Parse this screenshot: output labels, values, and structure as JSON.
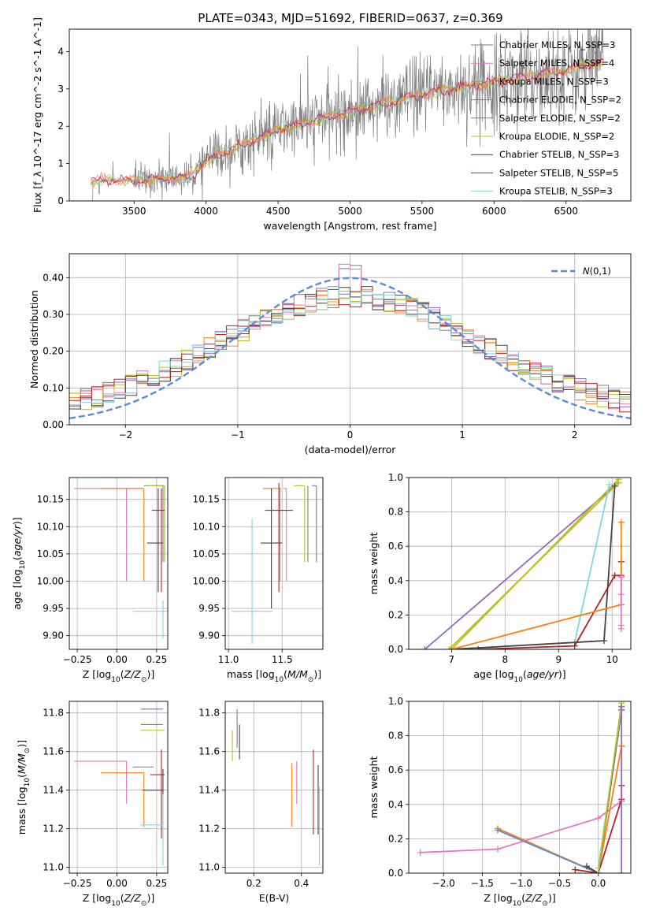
{
  "title": "PLATE=0343, MJD=51692, FIBERID=0637, z=0.369",
  "colors": {
    "chabrier_miles": "#7f7f7f",
    "salpeter_miles": "#e377c2",
    "kroupa_miles": "#ff7f0e",
    "chabrier_elodie": "#7f7f7f",
    "salpeter_elodie": "#9467bd",
    "kroupa_elodie": "#bcbd22",
    "chabrier_stelib": "#444444",
    "salpeter_stelib": "#b22222",
    "kroupa_stelib": "#7fd6dd",
    "gaussian": "#5b8bd6"
  },
  "chart_data": [
    {
      "id": "spectrum",
      "type": "line",
      "xlabel": "wavelength [Angstrom, rest frame]",
      "ylabel": "Flux [f_λ 10^-17 erg cm^-2 s^-1 A^-1]",
      "xlim": [
        3050,
        6950
      ],
      "ylim": [
        0,
        4.6
      ],
      "xticks": [
        3500,
        4000,
        4500,
        5000,
        5500,
        6000,
        6500
      ],
      "yticks": [
        0,
        1,
        2,
        3,
        4
      ],
      "legend_position": "top-right",
      "legend": [
        {
          "label": "Chabrier MILES, N_SSP=3",
          "color": "#7f7f7f"
        },
        {
          "label": "Salpeter MILES, N_SSP=4",
          "color": "#e377c2"
        },
        {
          "label": "Kroupa MILES, N_SSP=3",
          "color": "#ff7f0e"
        },
        {
          "label": "Chabrier ELODIE, N_SSP=2",
          "color": "#7f7f7f"
        },
        {
          "label": "Salpeter ELODIE, N_SSP=2",
          "color": "#9467bd"
        },
        {
          "label": "Kroupa ELODIE, N_SSP=2",
          "color": "#bcbd22"
        },
        {
          "label": "Chabrier STELIB, N_SSP=3",
          "color": "#444444"
        },
        {
          "label": "Salpeter STELIB, N_SSP=5",
          "color": "#b22222"
        },
        {
          "label": "Kroupa STELIB, N_SSP=3",
          "color": "#7fd6dd"
        }
      ],
      "model_trend": [
        {
          "x": 3200,
          "y": 0.55
        },
        {
          "x": 3500,
          "y": 0.55
        },
        {
          "x": 3900,
          "y": 0.65
        },
        {
          "x": 4000,
          "y": 1.1
        },
        {
          "x": 4500,
          "y": 1.9
        },
        {
          "x": 5000,
          "y": 2.4
        },
        {
          "x": 5500,
          "y": 2.85
        },
        {
          "x": 6000,
          "y": 3.2
        },
        {
          "x": 6500,
          "y": 3.5
        },
        {
          "x": 6750,
          "y": 3.75
        }
      ]
    },
    {
      "id": "residuals",
      "type": "line",
      "xlabel": "(data-model)/error",
      "ylabel": "Normed distribution",
      "xlim": [
        -2.5,
        2.5
      ],
      "ylim": [
        0,
        0.465
      ],
      "xticks": [
        -2,
        -1,
        0,
        1,
        2
      ],
      "yticks": [
        0.0,
        0.1,
        0.2,
        0.3,
        0.4
      ],
      "legend_position": "top-right",
      "legend": [
        {
          "label": "N(0,1)",
          "color": "#5b8bd6",
          "dashed": true
        }
      ],
      "gaussian": {
        "mu": 0,
        "sigma": 1
      },
      "hist_bin_width": 0.1,
      "hist_envelope_max": 0.44
    },
    {
      "id": "age_vs_Z",
      "type": "scatter",
      "xlabel": "Z [log10(Z/Z⊙)]",
      "ylabel": "age [log10(age/yr)]",
      "xlim": [
        -0.3,
        0.32
      ],
      "ylim": [
        9.875,
        10.19
      ],
      "xticks": [
        -0.25,
        0.0,
        0.25
      ],
      "yticks": [
        9.9,
        9.95,
        10.0,
        10.05,
        10.1,
        10.15
      ],
      "points": [
        {
          "color": "#e377c2",
          "x": 0.06,
          "y": 10.17,
          "xerr": [
            0.33,
            0.1
          ],
          "yerr": [
            0.17,
            0.0
          ]
        },
        {
          "color": "#ff7f0e",
          "x": 0.17,
          "y": 10.17,
          "xerr": [
            0.27,
            0.0
          ],
          "yerr": [
            0.17,
            0.0
          ]
        },
        {
          "color": "#7f7f7f",
          "x": 0.29,
          "y": 10.175,
          "xerr": [
            0.12,
            0.01
          ],
          "yerr": [
            0.14,
            0.0
          ]
        },
        {
          "color": "#9467bd",
          "x": 0.3,
          "y": 10.175,
          "xerr": [
            0.08,
            0.0
          ],
          "yerr": [
            0.14,
            0.0
          ]
        },
        {
          "color": "#bcbd22",
          "x": 0.3,
          "y": 10.175,
          "xerr": [
            0.1,
            0.0
          ],
          "yerr": [
            0.14,
            0.0
          ]
        },
        {
          "color": "#444444",
          "x": 0.26,
          "y": 10.07,
          "xerr": [
            0.07,
            0.03
          ],
          "yerr": [
            0.09,
            0.1
          ]
        },
        {
          "color": "#b22222",
          "x": 0.28,
          "y": 10.13,
          "xerr": [
            0.06,
            0.02
          ],
          "yerr": [
            0.15,
            0.04
          ]
        },
        {
          "color": "#7fd6dd",
          "x": 0.29,
          "y": 9.945,
          "xerr": [
            0.19,
            0.03
          ],
          "yerr": [
            0.05,
            0.02
          ]
        }
      ]
    },
    {
      "id": "age_vs_mass",
      "type": "scatter",
      "xlabel": "mass [log10(M/M⊙)]",
      "ylabel": "",
      "xlim": [
        10.97,
        11.88
      ],
      "ylim": [
        9.875,
        10.19
      ],
      "xticks": [
        11.0,
        11.5
      ],
      "yticks": [
        9.9,
        9.95,
        10.0,
        10.05,
        10.1,
        10.15
      ],
      "points": [
        {
          "color": "#e377c2",
          "x": 11.54,
          "y": 10.17,
          "xerr": [
            0.03,
            0.0
          ],
          "yerr": [
            0.17,
            0.0
          ]
        },
        {
          "color": "#ff7f0e",
          "x": 11.48,
          "y": 10.17,
          "xerr": [
            0.16,
            0.01
          ],
          "yerr": [
            0.17,
            0.0
          ]
        },
        {
          "color": "#7f7f7f",
          "x": 11.74,
          "y": 10.175,
          "xerr": [
            0.0,
            0.0
          ],
          "yerr": [
            0.14,
            0.0
          ]
        },
        {
          "color": "#9467bd",
          "x": 11.82,
          "y": 10.175,
          "xerr": [
            0.04,
            0.0
          ],
          "yerr": [
            0.14,
            0.0
          ]
        },
        {
          "color": "#bcbd22",
          "x": 11.71,
          "y": 10.175,
          "xerr": [
            0.1,
            0.0
          ],
          "yerr": [
            0.14,
            0.0
          ]
        },
        {
          "color": "#444444",
          "x": 11.4,
          "y": 10.07,
          "xerr": [
            0.1,
            0.1
          ],
          "yerr": [
            0.12,
            0.1
          ]
        },
        {
          "color": "#b22222",
          "x": 11.47,
          "y": 10.13,
          "xerr": [
            0.13,
            0.13
          ],
          "yerr": [
            0.15,
            0.05
          ]
        },
        {
          "color": "#7fd6dd",
          "x": 11.22,
          "y": 9.945,
          "xerr": [
            0.19,
            0.19
          ],
          "yerr": [
            0.06,
            0.17
          ]
        }
      ]
    },
    {
      "id": "weight_vs_age",
      "type": "line",
      "xlabel": "age [log10(age/yr)]",
      "ylabel": "mass weight",
      "xlim": [
        6.2,
        10.35
      ],
      "ylim": [
        0,
        1.0
      ],
      "xticks": [
        7,
        8,
        9,
        10
      ],
      "yticks": [
        0.0,
        0.2,
        0.4,
        0.6,
        0.8,
        1.0
      ],
      "series": [
        {
          "color": "#9467bd",
          "x": [
            6.5,
            10.12
          ],
          "y": [
            0.0,
            0.97
          ]
        },
        {
          "color": "#bcbd22",
          "x": [
            7.0,
            10.12
          ],
          "y": [
            0.0,
            0.99
          ]
        },
        {
          "color": "#bcbd22",
          "x": [
            6.95,
            10.12
          ],
          "y": [
            0.0,
            0.97
          ]
        },
        {
          "color": "#7fd6dd",
          "x": [
            7.0,
            9.3,
            9.95
          ],
          "y": [
            0.0,
            0.04,
            0.96
          ]
        },
        {
          "color": "#444444",
          "x": [
            7.0,
            9.85,
            10.05
          ],
          "y": [
            0.0,
            0.05,
            0.95
          ]
        },
        {
          "color": "#b22222",
          "x": [
            7.5,
            9.3,
            10.05,
            10.17,
            10.17
          ],
          "y": [
            0.0,
            0.02,
            0.43,
            0.43,
            0.51
          ]
        },
        {
          "color": "#ff7f0e",
          "x": [
            7.0,
            10.17,
            10.17
          ],
          "y": [
            0.0,
            0.26,
            0.74
          ]
        },
        {
          "color": "#e377c2",
          "x": [
            10.17,
            10.17,
            10.17,
            10.17
          ],
          "y": [
            0.12,
            0.14,
            0.32,
            0.42
          ]
        }
      ]
    },
    {
      "id": "mass_vs_Z",
      "type": "scatter",
      "xlabel": "Z [log10(Z/Z⊙)]",
      "ylabel": "mass [log10(M/M⊙)]",
      "xlim": [
        -0.3,
        0.32
      ],
      "ylim": [
        10.97,
        11.86
      ],
      "xticks": [
        -0.25,
        0.0,
        0.25
      ],
      "yticks": [
        11.0,
        11.2,
        11.4,
        11.6,
        11.8
      ],
      "points": [
        {
          "color": "#e377c2",
          "x": 0.06,
          "y": 11.55,
          "xerr": [
            0.33,
            0.0
          ],
          "yerr": [
            0.22,
            0.0
          ]
        },
        {
          "color": "#ff7f0e",
          "x": 0.17,
          "y": 11.49,
          "xerr": [
            0.27,
            0.0
          ],
          "yerr": [
            0.28,
            0.0
          ]
        },
        {
          "color": "#5b8bd6",
          "x": 0.23,
          "y": 11.52,
          "xerr": [
            0.13,
            0.0
          ],
          "yerr": [
            0.0,
            0.0
          ]
        },
        {
          "color": "#7f7f7f",
          "x": 0.29,
          "y": 11.74,
          "xerr": [
            0.14,
            0.0
          ],
          "yerr": [
            0.0,
            0.0
          ]
        },
        {
          "color": "#9467bd",
          "x": 0.29,
          "y": 11.82,
          "xerr": [
            0.14,
            0.0
          ],
          "yerr": [
            0.0,
            0.0
          ]
        },
        {
          "color": "#bcbd22",
          "x": 0.29,
          "y": 11.71,
          "xerr": [
            0.14,
            0.01
          ],
          "yerr": [
            0.0,
            0.0
          ]
        },
        {
          "color": "#444444",
          "x": 0.29,
          "y": 11.4,
          "xerr": [
            0.13,
            0.0
          ],
          "yerr": [
            0.24,
            0.11
          ]
        },
        {
          "color": "#b22222",
          "x": 0.28,
          "y": 11.48,
          "xerr": [
            0.07,
            0.02
          ],
          "yerr": [
            0.33,
            0.13
          ]
        },
        {
          "color": "#7fd6dd",
          "x": 0.29,
          "y": 11.22,
          "xerr": [
            0.14,
            0.0
          ],
          "yerr": [
            0.21,
            0.16
          ]
        }
      ]
    },
    {
      "id": "mass_vs_EBV",
      "type": "scatter",
      "xlabel": "E(B-V)",
      "ylabel": "",
      "xlim": [
        0.08,
        0.49
      ],
      "ylim": [
        10.97,
        11.86
      ],
      "xticks": [
        0.2,
        0.4
      ],
      "yticks": [
        11.0,
        11.2,
        11.4,
        11.6,
        11.8
      ],
      "points": [
        {
          "color": "#bcbd22",
          "x": 0.11,
          "y": 11.65,
          "xerr": [
            0,
            0
          ],
          "yerr": [
            0.1,
            0.06
          ]
        },
        {
          "color": "#9467bd",
          "x": 0.13,
          "y": 11.72,
          "xerr": [
            0,
            0
          ],
          "yerr": [
            0.1,
            0.1
          ]
        },
        {
          "color": "#444444",
          "x": 0.14,
          "y": 11.65,
          "xerr": [
            0,
            0
          ],
          "yerr": [
            0.09,
            0.09
          ]
        },
        {
          "color": "#ff7f0e",
          "x": 0.36,
          "y": 11.38,
          "xerr": [
            0,
            0
          ],
          "yerr": [
            0.17,
            0.16
          ]
        },
        {
          "color": "#e377c2",
          "x": 0.38,
          "y": 11.43,
          "xerr": [
            0,
            0
          ],
          "yerr": [
            0.1,
            0.12
          ]
        },
        {
          "color": "#b22222",
          "x": 0.45,
          "y": 11.39,
          "xerr": [
            0,
            0
          ],
          "yerr": [
            0.22,
            0.22
          ]
        },
        {
          "color": "#444444",
          "x": 0.47,
          "y": 11.34,
          "xerr": [
            0,
            0
          ],
          "yerr": [
            0.17,
            0.19
          ]
        },
        {
          "color": "#7fd6dd",
          "x": 0.475,
          "y": 11.22,
          "xerr": [
            0,
            0
          ],
          "yerr": [
            0.21,
            0.2
          ]
        }
      ]
    },
    {
      "id": "weight_vs_Z",
      "type": "line",
      "xlabel": "Z [log10(Z/Z⊙)]",
      "ylabel": "mass weight",
      "xlim": [
        -2.45,
        0.42
      ],
      "ylim": [
        0,
        1.0
      ],
      "xticks": [
        -2.0,
        -1.5,
        -1.0,
        -0.5,
        0.0
      ],
      "yticks": [
        0.0,
        0.2,
        0.4,
        0.6,
        0.8,
        1.0
      ],
      "series": [
        {
          "color": "#e377c2",
          "x": [
            -2.3,
            -1.3,
            0.0,
            0.3
          ],
          "y": [
            0.12,
            0.14,
            0.32,
            0.42
          ]
        },
        {
          "color": "#ff7f0e",
          "x": [
            -1.3,
            0.0,
            0.3,
            0.3
          ],
          "y": [
            0.26,
            0.0,
            0.74,
            0.74
          ]
        },
        {
          "color": "#5b8bd6",
          "x": [
            -1.3,
            0.0
          ],
          "y": [
            0.25,
            0.0
          ]
        },
        {
          "color": "#444444",
          "x": [
            -0.15,
            0.0,
            0.3
          ],
          "y": [
            0.04,
            0.0,
            0.95
          ]
        },
        {
          "color": "#b22222",
          "x": [
            -0.3,
            0.0,
            0.3,
            0.3
          ],
          "y": [
            0.02,
            0.0,
            0.43,
            0.51
          ]
        },
        {
          "color": "#7fd6dd",
          "x": [
            0.0,
            0.3
          ],
          "y": [
            0.03,
            0.97
          ]
        },
        {
          "color": "#bcbd22",
          "x": [
            0.0,
            0.3
          ],
          "y": [
            0.0,
            0.99
          ]
        },
        {
          "color": "#9467bd",
          "x": [
            0.3,
            0.3
          ],
          "y": [
            0.0,
            0.97
          ]
        }
      ]
    }
  ]
}
